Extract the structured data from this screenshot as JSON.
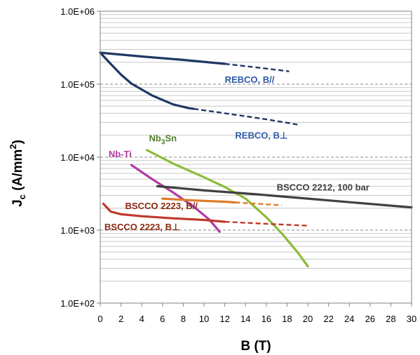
{
  "chart_data": {
    "type": "line",
    "title": "",
    "xlabel": "B (T)",
    "ylabel_main": "J",
    "ylabel_sub": "c",
    "ylabel_rest": " (A/mm",
    "ylabel_sup": "2",
    "ylabel_end": ")",
    "xlim": [
      0,
      30
    ],
    "ylim": [
      100,
      1000000
    ],
    "yscale": "log",
    "x_ticks": [
      0,
      2,
      4,
      6,
      8,
      10,
      12,
      14,
      16,
      18,
      20,
      22,
      24,
      26,
      28,
      30
    ],
    "y_ticks": [
      {
        "value": 100,
        "label": "1.0E+02"
      },
      {
        "value": 1000,
        "label": "1.0E+03"
      },
      {
        "value": 10000,
        "label": "1.0E+04"
      },
      {
        "value": 100000,
        "label": "1.0E+05"
      },
      {
        "value": 1000000,
        "label": "1.0E+06"
      }
    ],
    "grid": true,
    "legend": "none",
    "series": [
      {
        "name": "REBCO, B//",
        "color": "#1f3864",
        "solid": [
          [
            0,
            270000
          ],
          [
            4,
            240000
          ],
          [
            8,
            215000
          ],
          [
            12,
            190000
          ]
        ],
        "dashed": [
          [
            12,
            190000
          ],
          [
            15,
            170000
          ],
          [
            18.2,
            150000
          ]
        ]
      },
      {
        "name": "REBCO, B⊥",
        "color": "#1f3864",
        "solid": [
          [
            0,
            270000
          ],
          [
            1,
            190000
          ],
          [
            2,
            135000
          ],
          [
            3,
            102000
          ],
          [
            5,
            70000
          ],
          [
            7,
            53000
          ],
          [
            8.5,
            47000
          ],
          [
            9,
            46000
          ]
        ],
        "dashed": [
          [
            9,
            46000
          ],
          [
            12,
            40000
          ],
          [
            16,
            33000
          ],
          [
            19,
            28000
          ]
        ]
      },
      {
        "name": "Nb-Ti",
        "color": "#b23aa3",
        "solid": [
          [
            3,
            7800
          ],
          [
            5,
            5000
          ],
          [
            7,
            3300
          ],
          [
            9,
            2100
          ],
          [
            10.5,
            1400
          ],
          [
            11.5,
            950
          ]
        ],
        "dashed": []
      },
      {
        "name": "Nb3Sn",
        "color": "#8dbb3a",
        "solid": [
          [
            4.5,
            12500
          ],
          [
            7,
            8200
          ],
          [
            10,
            5300
          ],
          [
            12,
            3900
          ],
          [
            14,
            2700
          ],
          [
            16,
            1500
          ],
          [
            17.5,
            900
          ],
          [
            19,
            500
          ],
          [
            20,
            320
          ]
        ],
        "dashed": []
      },
      {
        "name": "BSCCO 2212, 100 bar",
        "color": "#404040",
        "solid": [
          [
            5.5,
            4000
          ],
          [
            10,
            3500
          ],
          [
            15,
            3100
          ],
          [
            20,
            2700
          ],
          [
            25,
            2350
          ],
          [
            30,
            2050
          ]
        ],
        "dashed": []
      },
      {
        "name": "BSCCO 2223, B//",
        "color": "#e07b2a",
        "solid": [
          [
            6,
            2700
          ],
          [
            9,
            2550
          ],
          [
            12,
            2450
          ],
          [
            13,
            2400
          ]
        ],
        "dashed": [
          [
            13,
            2400
          ],
          [
            15,
            2300
          ],
          [
            17.5,
            2200
          ]
        ]
      },
      {
        "name": "BSCCO 2223, B⊥",
        "color": "#c0392b",
        "solid": [
          [
            0.3,
            2300
          ],
          [
            1,
            1800
          ],
          [
            2,
            1650
          ],
          [
            4,
            1550
          ],
          [
            7,
            1450
          ],
          [
            10,
            1380
          ],
          [
            12,
            1300
          ]
        ],
        "dashed": [
          [
            12,
            1300
          ],
          [
            16,
            1220
          ],
          [
            20,
            1150
          ]
        ]
      }
    ],
    "annotations": [
      {
        "text": "REBCO, B//",
        "color": "#2e5aa6",
        "x": 12,
        "y": 105000
      },
      {
        "text": "REBCO, B⊥",
        "color": "#2e5aa6",
        "x": 13,
        "y": 18000
      },
      {
        "text": "Nb-Ti",
        "color": "#b23aa3",
        "x": 0.8,
        "y": 10000
      },
      {
        "text": "Nb",
        "sub": "3",
        "tail": "Sn",
        "color": "#4f7f2a",
        "x": 4.7,
        "y": 16500
      },
      {
        "text": "BSCCO 2212, 100 bar",
        "color": "#404040",
        "x": 17,
        "y": 3500
      },
      {
        "text": "BSCCO 2223, B//",
        "color": "#8b2a12",
        "x": 2.4,
        "y": 1950
      },
      {
        "text": "BSCCO 2223, B⊥",
        "color": "#8b2a12",
        "x": 0.4,
        "y": 1000
      }
    ]
  }
}
